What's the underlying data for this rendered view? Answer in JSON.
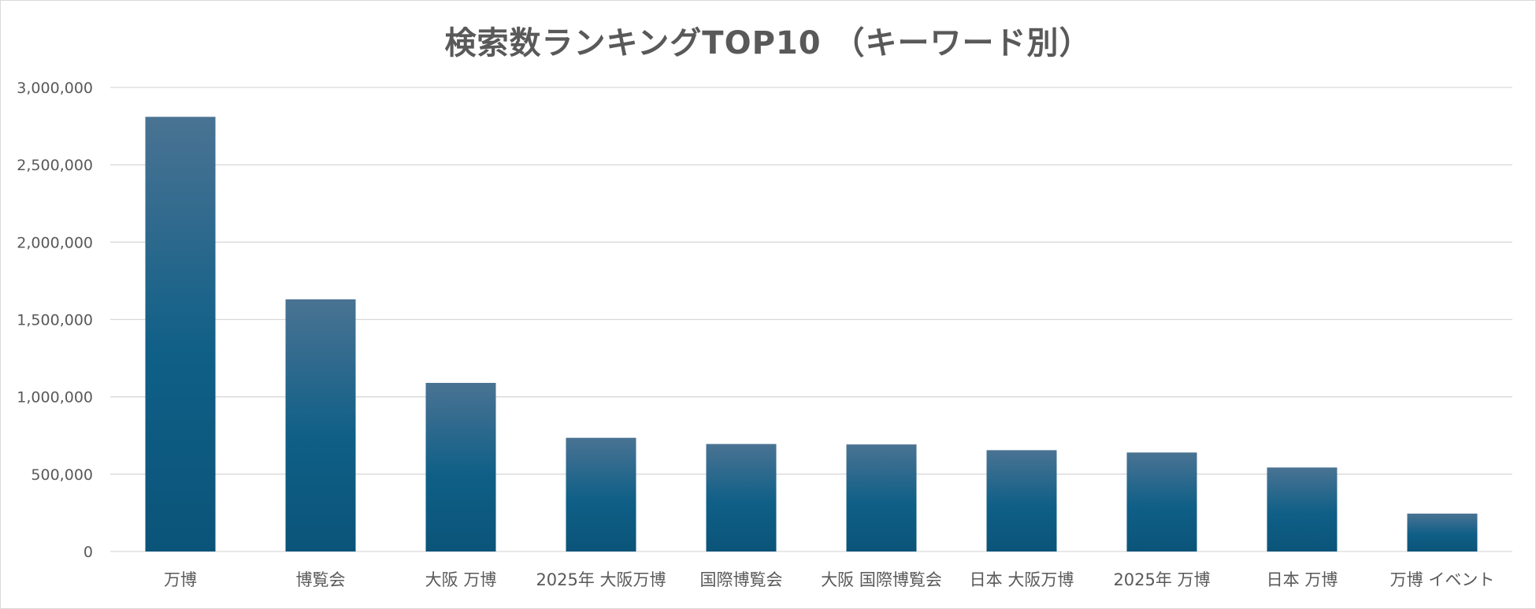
{
  "chart_data": {
    "type": "bar",
    "title": "検索数ランキングTOP10 （キーワード別）",
    "categories": [
      "万博",
      "博覧会",
      "大阪 万博",
      "2025年 大阪万博",
      "国際博覧会",
      "大阪 国際博覧会",
      "日本 大阪万博",
      "2025年 万博",
      "日本 万博",
      "万博 イベント"
    ],
    "values": [
      2810000,
      1630000,
      1090000,
      735000,
      695000,
      692000,
      655000,
      640000,
      543000,
      245000
    ],
    "ylim": [
      0,
      3000000
    ],
    "yticks": [
      0,
      500000,
      1000000,
      1500000,
      2000000,
      2500000,
      3000000
    ],
    "ytick_labels": [
      "0",
      "500,000",
      "1,000,000",
      "1,500,000",
      "2,000,000",
      "2,500,000",
      "3,000,000"
    ],
    "xlabel": "",
    "ylabel": "",
    "grid": true,
    "legend": "none",
    "colors": {
      "bar_top": "#4a7393",
      "bar_bottom": "#0b5479",
      "grid": "#d9d9d9",
      "text": "#595959"
    }
  }
}
